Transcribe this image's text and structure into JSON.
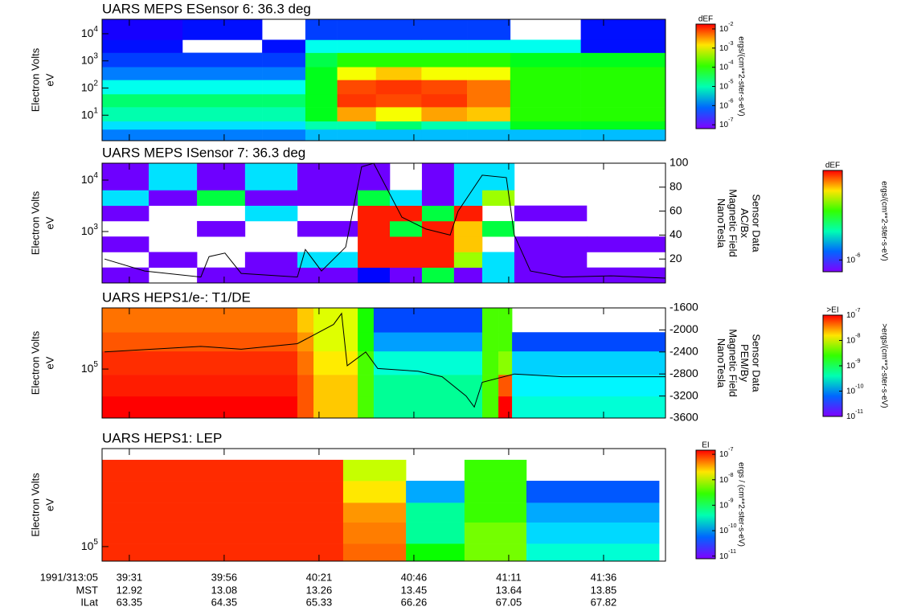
{
  "chart_data": [
    {
      "type": "heatmap",
      "title": "UARS MEPS ESensor 6: 36.3 deg",
      "y_label": [
        "Electron Volts",
        "eV"
      ],
      "log_y": true,
      "ylim": [
        1.15,
        34000
      ],
      "yticks": [
        {
          "value": 10,
          "label": "10^1"
        },
        {
          "value": 100,
          "label": "10^2"
        },
        {
          "value": 1000,
          "label": "10^3"
        },
        {
          "value": 10000,
          "label": "10^4"
        }
      ],
      "xlim": [
        39.397,
        41.872
      ],
      "xticks": [
        {
          "value": 39.5167,
          "label": "39:31"
        },
        {
          "value": 39.9333,
          "label": "39:56"
        },
        {
          "value": 40.35,
          "label": "40:21"
        },
        {
          "value": 40.7667,
          "label": "40:46"
        },
        {
          "value": 41.1833,
          "label": "41:11"
        },
        {
          "value": 41.6,
          "label": "41:36"
        }
      ],
      "x_bins": [
        39.397,
        39.75,
        40.1,
        40.29,
        40.43,
        40.6,
        40.8,
        41.0,
        41.19,
        41.5,
        41.872
      ],
      "y_bins": [
        1.15,
        3,
        6,
        20,
        60,
        200,
        600,
        2000,
        6000,
        34000
      ],
      "z": [
        [
          1e-06,
          1e-06,
          1e-06,
          2e-06,
          2e-06,
          2e-06,
          2e-06,
          2e-06,
          2e-06,
          2e-06
        ],
        [
          3e-06,
          3e-06,
          3e-06,
          1e-05,
          1e-05,
          2e-05,
          1e-05,
          1e-05,
          5e-05,
          5e-05
        ],
        [
          1e-05,
          1e-05,
          1e-05,
          5e-05,
          0.003,
          0.001,
          0.003,
          0.002,
          0.0001,
          0.0001
        ],
        [
          2e-05,
          2e-05,
          2e-05,
          5e-05,
          0.01,
          0.008,
          0.01,
          0.005,
          0.0001,
          0.0001
        ],
        [
          5e-06,
          5e-06,
          5e-06,
          5e-05,
          0.008,
          0.01,
          0.008,
          0.005,
          0.0001,
          0.0001
        ],
        [
          1e-06,
          1e-06,
          1e-06,
          5e-05,
          0.001,
          0.002,
          0.001,
          0.001,
          0.0001,
          0.0001
        ],
        [
          5e-07,
          5e-07,
          5e-07,
          3e-05,
          0.0001,
          0.0001,
          0.0001,
          0.0001,
          5e-05,
          5e-05
        ],
        [
          3e-07,
          null,
          3e-07,
          5e-06,
          5e-06,
          5e-06,
          5e-06,
          5e-06,
          5e-06,
          3e-07
        ],
        [
          2e-07,
          3e-07,
          null,
          5e-07,
          5e-07,
          5e-07,
          5e-07,
          5e-07,
          null,
          3e-07
        ]
      ],
      "colorbar": {
        "label": "dEF",
        "unit": "ergs/(cm**2-ster-s-eV)",
        "clim": [
          6.3e-08,
          0.0178
        ],
        "ticks": [
          {
            "value": 0.01,
            "label": "10^-2"
          },
          {
            "value": 0.001,
            "label": "10^-3"
          },
          {
            "value": 0.0001,
            "label": "10^-4"
          },
          {
            "value": 1e-05,
            "label": "10^-5"
          },
          {
            "value": 1e-06,
            "label": "10^-6"
          },
          {
            "value": 1e-07,
            "label": "10^-7"
          }
        ]
      }
    },
    {
      "type": "heatmap",
      "title": "UARS MEPS ISensor 7: 36.3 deg",
      "y_label": [
        "Electron Volts",
        "eV"
      ],
      "log_y": true,
      "ylim": [
        100,
        21300
      ],
      "yticks": [
        {
          "value": 1000,
          "label": "10^3"
        },
        {
          "value": 10000,
          "label": "10^4"
        }
      ],
      "xlim": [
        39.397,
        41.872
      ],
      "xticks": [
        39.5167,
        39.9333,
        40.35,
        40.7667,
        41.1833,
        41.6
      ],
      "x_bins": [
        39.397,
        39.602,
        39.814,
        40.025,
        40.255,
        40.52,
        40.661,
        40.802,
        40.943,
        41.067,
        41.208,
        41.526,
        41.872
      ],
      "y_bins": [
        100,
        200,
        400,
        800,
        1600,
        3200,
        6400,
        21300
      ],
      "z": [
        [
          3e-07,
          null,
          3e-07,
          3e-07,
          3e-07,
          1e-06,
          3e-07,
          0.0001,
          3e-07,
          1e-05,
          3e-07,
          3e-07
        ],
        [
          null,
          3e-07,
          null,
          3e-07,
          1e-05,
          0.03,
          0.03,
          0.03,
          0.001,
          1e-05,
          3e-07,
          null
        ],
        [
          3e-07,
          null,
          null,
          null,
          null,
          0.03,
          0.03,
          0.03,
          0.005,
          null,
          3e-07,
          3e-07
        ],
        [
          null,
          null,
          3e-07,
          null,
          3e-07,
          0.03,
          0.0001,
          0.03,
          0.005,
          0.0001,
          null,
          null
        ],
        [
          3e-07,
          null,
          null,
          1e-05,
          null,
          0.03,
          0.03,
          0.0001,
          0.03,
          null,
          3e-07,
          null
        ],
        [
          1e-05,
          3e-07,
          0.0001,
          3e-07,
          3e-07,
          0.0001,
          1e-05,
          3e-07,
          1e-05,
          0.001,
          null,
          null
        ],
        [
          3e-07,
          1e-05,
          3e-07,
          1e-05,
          3e-07,
          3e-07,
          null,
          3e-07,
          1e-05,
          1e-05,
          null,
          null
        ]
      ],
      "y2lim": [
        0,
        100
      ],
      "y2ticks": [
        20,
        40,
        60,
        80,
        100
      ],
      "y2_label": [
        "Sensor Data",
        "AC/Bx",
        "Magnetic Field",
        "NanoTesla"
      ],
      "overlay": {
        "axis": "y2",
        "color": "#000000",
        "x": [
          39.408,
          39.584,
          39.831,
          39.867,
          39.937,
          40.008,
          40.255,
          40.29,
          40.361,
          40.467,
          40.537,
          40.59,
          40.714,
          40.82,
          40.926,
          40.961,
          41.067,
          41.173,
          41.208,
          41.279,
          41.42,
          41.632,
          41.872
        ],
        "values": [
          20,
          10,
          5,
          22,
          25,
          8,
          5,
          28,
          10,
          30,
          97,
          100,
          55,
          45,
          40,
          60,
          90,
          88,
          40,
          10,
          5,
          6,
          4
        ]
      },
      "colorbar": {
        "label": "dEF",
        "unit": "ergs/(cm**2-ster-s-eV)",
        "clim": [
          2.5e-07,
          0.04
        ],
        "ticks": [
          {
            "value": 1e-06,
            "label": "10^-6"
          }
        ]
      }
    },
    {
      "type": "heatmap",
      "title": "UARS HEPS1/e-: T1/DE",
      "y_label": [
        "Electron Volts",
        "eV"
      ],
      "log_y": true,
      "ylim": [
        39800,
        316000
      ],
      "yticks": [
        {
          "value": 100000,
          "label": "10^5"
        }
      ],
      "xlim": [
        39.397,
        41.872
      ],
      "xticks": [
        39.5167,
        39.9333,
        40.35,
        40.7667,
        41.1833,
        41.6
      ],
      "x_bins": [
        39.397,
        40.255,
        40.326,
        40.52,
        40.59,
        41.067,
        41.138,
        41.198,
        41.872
      ],
      "y_bins": [
        39800,
        60000,
        90000,
        140000,
        200000,
        316000
      ],
      "z": [
        [
          1e-07,
          5e-08,
          2e-08,
          3e-09,
          5e-10,
          3e-09,
          1e-07,
          3e-10
        ],
        [
          8e-08,
          5e-08,
          2e-08,
          3e-09,
          5e-10,
          3e-09,
          5e-08,
          2e-10
        ],
        [
          7e-08,
          4e-08,
          1.5e-08,
          3e-09,
          3e-10,
          3e-09,
          5e-09,
          1.5e-10
        ],
        [
          5e-08,
          3e-08,
          1e-08,
          2e-09,
          1e-10,
          3e-09,
          3e-09,
          5e-11
        ],
        [
          4e-08,
          2e-08,
          1e-08,
          2e-09,
          5e-11,
          3e-09,
          3e-09,
          null
        ]
      ],
      "y2lim": [
        -3600,
        -1600
      ],
      "y2ticks": [
        -1600,
        -2000,
        -2400,
        -2800,
        -3200,
        -3600
      ],
      "y2_label": [
        "Sensor Data",
        "PEM/By",
        "Magnetic Field",
        "NanoTesla"
      ],
      "overlay": {
        "axis": "y2",
        "color": "#000000",
        "x": [
          39.408,
          39.831,
          40.008,
          40.255,
          40.414,
          40.449,
          40.474,
          40.555,
          40.608,
          40.785,
          40.891,
          40.996,
          41.032,
          41.067,
          41.208,
          41.42,
          41.872
        ],
        "values": [
          -2400,
          -2300,
          -2350,
          -2250,
          -1900,
          -1700,
          -2650,
          -2400,
          -2700,
          -2750,
          -2850,
          -3200,
          -3400,
          -2950,
          -2800,
          -2850,
          -2850
        ]
      },
      "colorbar": {
        "label": ">EI",
        "unit": ">ergs/(cm**2-ster-s-eV)",
        "clim": [
          1e-11,
          1e-07
        ],
        "ticks": [
          {
            "value": 1e-07,
            "label": "10^-7"
          },
          {
            "value": 1e-08,
            "label": "10^-8"
          },
          {
            "value": 1e-09,
            "label": "10^-9"
          },
          {
            "value": 1e-10,
            "label": "10^-10"
          },
          {
            "value": 1e-11,
            "label": "10^-11"
          }
        ]
      }
    },
    {
      "type": "heatmap",
      "title": "UARS HEPS1: LEP",
      "y_label": [
        "Electron Volts",
        "eV"
      ],
      "log_y": true,
      "ylim": [
        79400,
        473000
      ],
      "yticks": [
        {
          "value": 100000,
          "label": "10^5"
        }
      ],
      "xlim": [
        39.397,
        41.872
      ],
      "xticks": [
        {
          "value": 39.5167,
          "label": "39:31"
        },
        {
          "value": 39.9333,
          "label": "39:56"
        },
        {
          "value": 40.35,
          "label": "40:21"
        },
        {
          "value": 40.7667,
          "label": "40:46"
        },
        {
          "value": 41.1833,
          "label": "41:11"
        },
        {
          "value": 41.6,
          "label": "41:36"
        }
      ],
      "x_bins": [
        39.397,
        40.456,
        40.732,
        40.989,
        41.261,
        41.844
      ],
      "y_bins": [
        79400,
        105000,
        147000,
        201000,
        284000,
        396000
      ],
      "z": [
        [
          1e-07,
          6e-08,
          2e-09,
          5e-09,
          3e-10
        ],
        [
          1e-07,
          5e-08,
          5e-10,
          5e-09,
          1.5e-10
        ],
        [
          1e-07,
          4e-08,
          5e-10,
          3e-09,
          1e-10
        ],
        [
          1e-07,
          2e-08,
          1e-10,
          3e-09,
          5e-11
        ],
        [
          1e-07,
          1e-08,
          null,
          3e-09,
          null
        ]
      ],
      "colorbar": {
        "label": "EI",
        "unit": "ergs / (cm**2-ster-s-eV)",
        "clim": [
          7.9e-12,
          1.45e-07
        ],
        "ticks": [
          {
            "value": 1e-07,
            "label": "10^-7"
          },
          {
            "value": 1e-08,
            "label": "10^-8"
          },
          {
            "value": 1e-09,
            "label": "10^-9"
          },
          {
            "value": 1e-10,
            "label": "10^-10"
          },
          {
            "value": 1e-11,
            "label": "10^-11"
          }
        ]
      },
      "x_rows": {
        "time_title": "1991/313:05",
        "mst_title": "MST",
        "mst": [
          12.92,
          13.08,
          13.26,
          13.45,
          13.64,
          13.85
        ],
        "ilat_title": "ILat",
        "ilat": [
          63.35,
          64.35,
          65.33,
          66.26,
          67.05,
          67.82
        ]
      }
    }
  ]
}
